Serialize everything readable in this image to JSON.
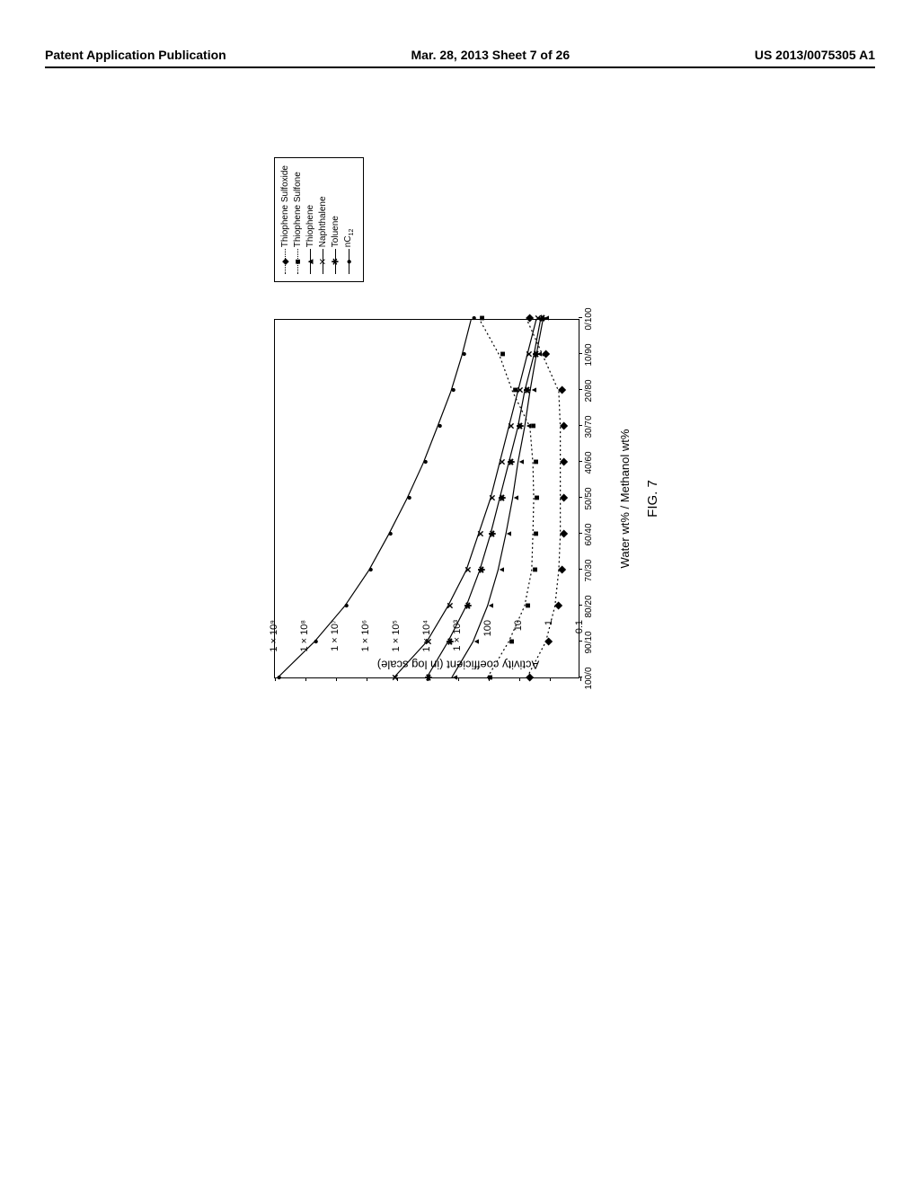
{
  "header": {
    "left": "Patent Application Publication",
    "center": "Mar. 28, 2013  Sheet 7 of 26",
    "right": "US 2013/0075305 A1"
  },
  "chart": {
    "type": "line",
    "title": "",
    "ylabel": "Activity coefficient (in log scale)",
    "xlabel": "Water wt% / Methanol  wt%",
    "figure_caption": "FIG. 7",
    "title_fontsize": 13,
    "label_fontsize": 13,
    "tick_fontsize": 11,
    "background_color": "#ffffff",
    "border_color": "#000000",
    "grid_color": "#cccccc",
    "scale": "log",
    "ylim": [
      0.1,
      1000000000.0
    ],
    "y_ticks": [
      {
        "value": 0.1,
        "label": "0.1"
      },
      {
        "value": 1,
        "label": "1"
      },
      {
        "value": 10,
        "label": "10"
      },
      {
        "value": 100,
        "label": "100"
      },
      {
        "value": 1000,
        "label": "1 × 10³"
      },
      {
        "value": 10000,
        "label": "1 × 10⁴"
      },
      {
        "value": 100000,
        "label": "1 × 10⁵"
      },
      {
        "value": 1000000,
        "label": "1 × 10⁶"
      },
      {
        "value": 10000000,
        "label": "1 × 10⁷"
      },
      {
        "value": 100000000,
        "label": "1 × 10⁸"
      },
      {
        "value": 1000000000,
        "label": "1 × 10⁹"
      }
    ],
    "x_categories": [
      "100/0",
      "90/10",
      "80/20",
      "70/30",
      "60/40",
      "50/50",
      "40/60",
      "30/70",
      "20/80",
      "10/90",
      "0/100"
    ],
    "x_positions": [
      0,
      1,
      2,
      3,
      4,
      5,
      6,
      7,
      8,
      9,
      10
    ],
    "series": [
      {
        "name": "Thiophene Sulfoxide",
        "marker": "diamond",
        "line_style": "dotted",
        "color": "#000000",
        "y_values": [
          5,
          1.2,
          0.6,
          0.45,
          0.4,
          0.4,
          0.4,
          0.4,
          0.45,
          1.5,
          5
        ]
      },
      {
        "name": "Thiophene Sulfone",
        "marker": "square",
        "line_style": "dotted",
        "color": "#000000",
        "y_values": [
          100,
          20,
          6,
          3.5,
          3.2,
          3,
          3.2,
          4,
          15,
          40,
          180
        ]
      },
      {
        "name": "Thiophene",
        "marker": "up-triangle",
        "line_style": "solid",
        "color": "#000000",
        "y_values": [
          1500,
          300,
          100,
          45,
          25,
          15,
          10,
          6,
          4,
          2.5,
          1.5
        ]
      },
      {
        "name": "Naphthalene",
        "marker": "x",
        "line_style": "solid",
        "color": "#000000",
        "y_values": [
          120000,
          10000,
          2000,
          500,
          200,
          80,
          40,
          20,
          10,
          5,
          2.5
        ]
      },
      {
        "name": "Toluene",
        "marker": "asterisk",
        "line_style": "solid",
        "color": "#000000",
        "y_values": [
          10000,
          2000,
          500,
          180,
          80,
          40,
          20,
          10,
          6,
          3,
          1.8
        ]
      },
      {
        "name": "nC₁₂",
        "marker": "circle",
        "line_style": "solid",
        "color": "#000000",
        "y_values": [
          800000000,
          50000000,
          5000000,
          800000,
          180000,
          45000,
          13000,
          4500,
          1600,
          700,
          350
        ]
      }
    ],
    "legend": {
      "position": "right",
      "border_color": "#000000"
    }
  }
}
